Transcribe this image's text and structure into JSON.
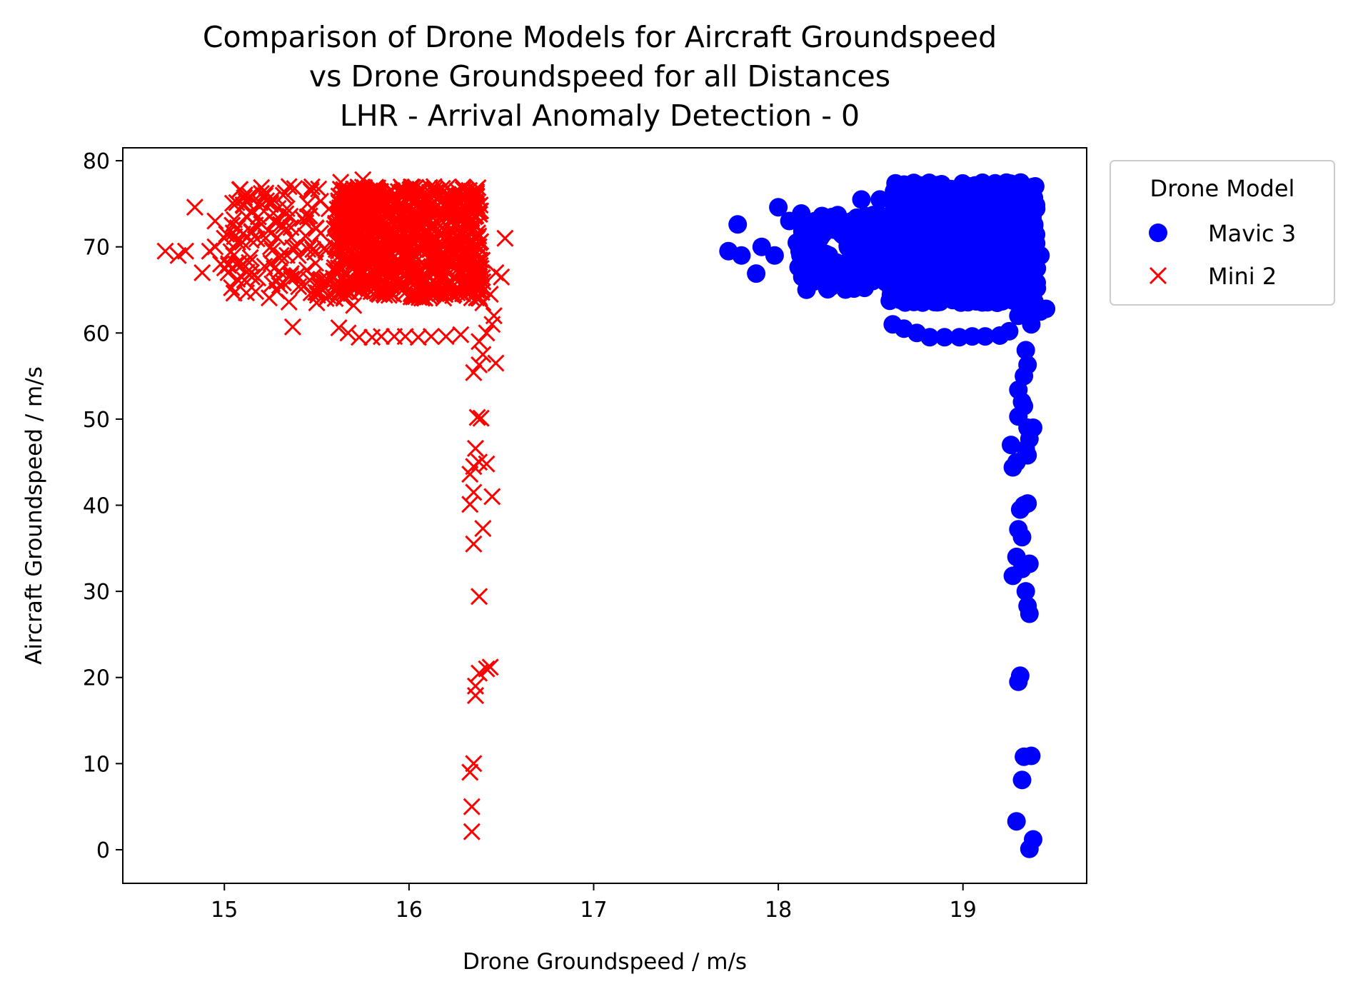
{
  "chart_data": {
    "type": "scatter",
    "title": [
      "Comparison of Drone Models for Aircraft Groundspeed",
      "vs Drone Groundspeed for all Distances",
      "LHR - Arrival Anomaly Detection - 0"
    ],
    "xlabel": "Drone Groundspeed / m/s",
    "ylabel": "Aircraft Groundspeed / m/s",
    "xlim": [
      14.45,
      19.67
    ],
    "ylim": [
      -3.9,
      81.5
    ],
    "x_ticks": [
      15,
      16,
      17,
      18,
      19
    ],
    "y_ticks": [
      0,
      10,
      20,
      30,
      40,
      50,
      60,
      70,
      80
    ],
    "grid": false,
    "legend": {
      "title": "Drone Model",
      "placement": "outside top-right",
      "entries": [
        "Mavic 3",
        "Mini 2"
      ]
    },
    "series": [
      {
        "name": "Mavic 3",
        "marker": "circle",
        "color": "#0000ff",
        "clusters": [
          {
            "x": [
              18.6,
              19.4
            ],
            "y": [
              63.5,
              77.5
            ],
            "n": 800
          },
          {
            "x": [
              18.1,
              18.6
            ],
            "y": [
              65.0,
              74.0
            ],
            "n": 100
          }
        ],
        "points": [
          [
            17.73,
            69.5
          ],
          [
            17.8,
            69.0
          ],
          [
            17.78,
            72.6
          ],
          [
            17.88,
            66.9
          ],
          [
            17.91,
            70.0
          ],
          [
            17.98,
            69.0
          ],
          [
            18.0,
            74.6
          ],
          [
            18.06,
            73.0
          ],
          [
            18.1,
            70.5
          ],
          [
            18.12,
            69.0
          ],
          [
            18.13,
            66.5
          ],
          [
            18.2,
            68.0
          ],
          [
            18.2,
            73.0
          ],
          [
            18.25,
            67.0
          ],
          [
            18.3,
            72.0
          ],
          [
            18.35,
            66.0
          ],
          [
            18.4,
            73.0
          ],
          [
            18.45,
            75.5
          ],
          [
            18.5,
            67.0
          ],
          [
            18.5,
            71.0
          ],
          [
            18.55,
            75.5
          ],
          [
            18.6,
            68.0
          ],
          [
            18.62,
            61.0
          ],
          [
            18.68,
            60.5
          ],
          [
            18.75,
            60.0
          ],
          [
            18.82,
            59.5
          ],
          [
            18.9,
            59.5
          ],
          [
            18.98,
            59.5
          ],
          [
            19.05,
            59.6
          ],
          [
            19.12,
            59.6
          ],
          [
            19.2,
            59.7
          ],
          [
            19.25,
            60.2
          ],
          [
            19.3,
            62.0
          ],
          [
            19.35,
            62.6
          ],
          [
            19.42,
            62.5
          ],
          [
            19.45,
            62.8
          ],
          [
            19.37,
            61.0
          ],
          [
            19.4,
            65.2
          ],
          [
            19.42,
            69.0
          ],
          [
            19.4,
            67.5
          ],
          [
            19.34,
            58.0
          ],
          [
            19.35,
            56.3
          ],
          [
            19.33,
            55.0
          ],
          [
            19.3,
            53.4
          ],
          [
            19.32,
            52.0
          ],
          [
            19.33,
            51.5
          ],
          [
            19.3,
            50.3
          ],
          [
            19.35,
            49.0
          ],
          [
            19.38,
            49.0
          ],
          [
            19.36,
            47.7
          ],
          [
            19.34,
            46.5
          ],
          [
            19.26,
            47.0
          ],
          [
            19.29,
            45.0
          ],
          [
            19.35,
            45.8
          ],
          [
            19.27,
            44.4
          ],
          [
            19.31,
            39.5
          ],
          [
            19.33,
            40.0
          ],
          [
            19.35,
            40.2
          ],
          [
            19.3,
            37.2
          ],
          [
            19.32,
            36.3
          ],
          [
            19.29,
            34.0
          ],
          [
            19.27,
            31.8
          ],
          [
            19.32,
            32.6
          ],
          [
            19.36,
            33.2
          ],
          [
            19.34,
            30.0
          ],
          [
            19.35,
            28.3
          ],
          [
            19.36,
            27.4
          ],
          [
            19.31,
            20.2
          ],
          [
            19.3,
            19.5
          ],
          [
            19.33,
            10.8
          ],
          [
            19.37,
            10.9
          ],
          [
            19.32,
            8.1
          ],
          [
            19.29,
            3.3
          ],
          [
            19.38,
            1.2
          ],
          [
            19.36,
            0.1
          ]
        ]
      },
      {
        "name": "Mini 2",
        "marker": "x",
        "color": "#ff0000",
        "clusters": [
          {
            "x": [
              15.6,
              16.4
            ],
            "y": [
              64.0,
              77.0
            ],
            "n": 800
          },
          {
            "x": [
              15.0,
              15.9
            ],
            "y": [
              64.0,
              77.0
            ],
            "n": 200
          }
        ],
        "points": [
          [
            14.68,
            69.5
          ],
          [
            14.75,
            69.0
          ],
          [
            14.79,
            69.5
          ],
          [
            14.84,
            74.6
          ],
          [
            14.88,
            67.0
          ],
          [
            14.92,
            69.5
          ],
          [
            14.95,
            70.0
          ],
          [
            14.95,
            73.0
          ],
          [
            14.98,
            68.0
          ],
          [
            15.0,
            71.0
          ],
          [
            15.02,
            67.0
          ],
          [
            15.05,
            69.0
          ],
          [
            15.1,
            71.5
          ],
          [
            15.1,
            68.0
          ],
          [
            15.15,
            74.0
          ],
          [
            15.15,
            66.5
          ],
          [
            15.2,
            76.2
          ],
          [
            15.25,
            70.0
          ],
          [
            15.3,
            65.5
          ],
          [
            15.35,
            63.6
          ],
          [
            15.37,
            60.7
          ],
          [
            15.35,
            77.0
          ],
          [
            15.4,
            69.0
          ],
          [
            15.45,
            75.0
          ],
          [
            15.5,
            63.5
          ],
          [
            15.55,
            66.0
          ],
          [
            15.6,
            64.0
          ],
          [
            15.62,
            60.6
          ],
          [
            15.67,
            60.0
          ],
          [
            15.63,
            77.5
          ],
          [
            15.7,
            63.2
          ],
          [
            15.73,
            59.5
          ],
          [
            15.75,
            77.8
          ],
          [
            15.8,
            59.5
          ],
          [
            15.85,
            59.6
          ],
          [
            15.92,
            59.6
          ],
          [
            15.98,
            59.6
          ],
          [
            16.05,
            59.5
          ],
          [
            16.12,
            59.6
          ],
          [
            16.2,
            59.6
          ],
          [
            16.28,
            59.8
          ],
          [
            16.4,
            63.5
          ],
          [
            16.44,
            64.5
          ],
          [
            16.47,
            67.0
          ],
          [
            16.5,
            66.5
          ],
          [
            16.52,
            71.0
          ],
          [
            16.46,
            62.0
          ],
          [
            16.45,
            61.0
          ],
          [
            16.42,
            60.0
          ],
          [
            16.38,
            59.0
          ],
          [
            16.4,
            57.5
          ],
          [
            16.38,
            56.3
          ],
          [
            16.35,
            55.4
          ],
          [
            16.47,
            56.5
          ],
          [
            16.37,
            50.2
          ],
          [
            16.39,
            50.1
          ],
          [
            16.36,
            46.6
          ],
          [
            16.38,
            45.0
          ],
          [
            16.35,
            44.5
          ],
          [
            16.33,
            43.6
          ],
          [
            16.42,
            44.8
          ],
          [
            16.35,
            41.5
          ],
          [
            16.33,
            40.1
          ],
          [
            16.45,
            41.0
          ],
          [
            16.4,
            37.3
          ],
          [
            16.35,
            35.5
          ],
          [
            16.38,
            29.4
          ],
          [
            16.42,
            21.0
          ],
          [
            16.38,
            20.5
          ],
          [
            16.36,
            19.0
          ],
          [
            16.36,
            17.9
          ],
          [
            16.44,
            21.2
          ],
          [
            16.35,
            10.0
          ],
          [
            16.33,
            9.0
          ],
          [
            16.34,
            5.0
          ],
          [
            16.34,
            2.1
          ]
        ]
      }
    ]
  }
}
